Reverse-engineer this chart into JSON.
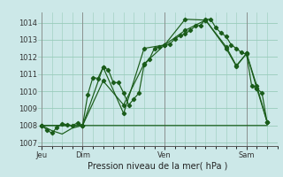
{
  "title": "Pression niveau de la mer( hPa )",
  "bg_color": "#cce8e8",
  "grid_color": "#99ccbb",
  "line_color": "#1a5c1a",
  "ylim": [
    1006.8,
    1014.6
  ],
  "yticks": [
    1007,
    1008,
    1009,
    1010,
    1011,
    1012,
    1013,
    1014
  ],
  "xtick_labels": [
    "Jeu",
    "Dim",
    "Ven",
    "Sam"
  ],
  "xtick_positions": [
    0,
    24,
    72,
    120
  ],
  "vlines": [
    0,
    24,
    72,
    120
  ],
  "xmin": -2,
  "xmax": 138,
  "series": [
    {
      "x": [
        0,
        6,
        12,
        18,
        24,
        30,
        36,
        42,
        48,
        54,
        60,
        66,
        72,
        78,
        84,
        90,
        96,
        102,
        108,
        114,
        120,
        126,
        132
      ],
      "y": [
        1008.0,
        1007.7,
        1007.5,
        1007.85,
        1008.0,
        1008.0,
        1008.0,
        1008.0,
        1008.0,
        1008.0,
        1008.0,
        1008.0,
        1008.0,
        1008.0,
        1008.0,
        1008.0,
        1008.0,
        1008.0,
        1008.0,
        1008.0,
        1008.0,
        1008.0,
        1008.0
      ],
      "marker": false
    },
    {
      "x": [
        0,
        3,
        6,
        9,
        12,
        15,
        18,
        21,
        24,
        27,
        30,
        33,
        36,
        39,
        42,
        45,
        48,
        51,
        54,
        57,
        60,
        63,
        66,
        69,
        72,
        75,
        78,
        81,
        84,
        87,
        90,
        93,
        96,
        99,
        102,
        105,
        108,
        111,
        114,
        117,
        120,
        123,
        126,
        129,
        132
      ],
      "y": [
        1008.0,
        1007.75,
        1007.55,
        1007.9,
        1008.1,
        1008.05,
        1008.0,
        1008.15,
        1008.0,
        1009.8,
        1010.8,
        1010.75,
        1011.4,
        1011.25,
        1010.5,
        1010.5,
        1009.9,
        1009.2,
        1009.55,
        1009.9,
        1011.55,
        1011.85,
        1012.5,
        1012.6,
        1012.7,
        1012.75,
        1013.05,
        1013.25,
        1013.35,
        1013.55,
        1013.8,
        1013.85,
        1014.2,
        1014.2,
        1013.7,
        1013.4,
        1013.2,
        1012.7,
        1012.5,
        1012.25,
        1012.15,
        1010.3,
        1010.15,
        1009.9,
        1008.2
      ],
      "marker": true
    },
    {
      "x": [
        0,
        24,
        36,
        48,
        60,
        72,
        84,
        96,
        108,
        114,
        120,
        126,
        132
      ],
      "y": [
        1008.0,
        1008.0,
        1011.4,
        1008.7,
        1012.5,
        1012.7,
        1014.2,
        1014.15,
        1012.6,
        1011.5,
        1012.2,
        1010.3,
        1008.2
      ],
      "marker": true
    },
    {
      "x": [
        0,
        24,
        36,
        48,
        60,
        72,
        84,
        96,
        108,
        114,
        120,
        126,
        132
      ],
      "y": [
        1008.0,
        1008.0,
        1010.6,
        1009.2,
        1011.6,
        1012.7,
        1013.55,
        1014.15,
        1012.5,
        1011.45,
        1012.2,
        1010.15,
        1008.2
      ],
      "marker": true
    }
  ]
}
